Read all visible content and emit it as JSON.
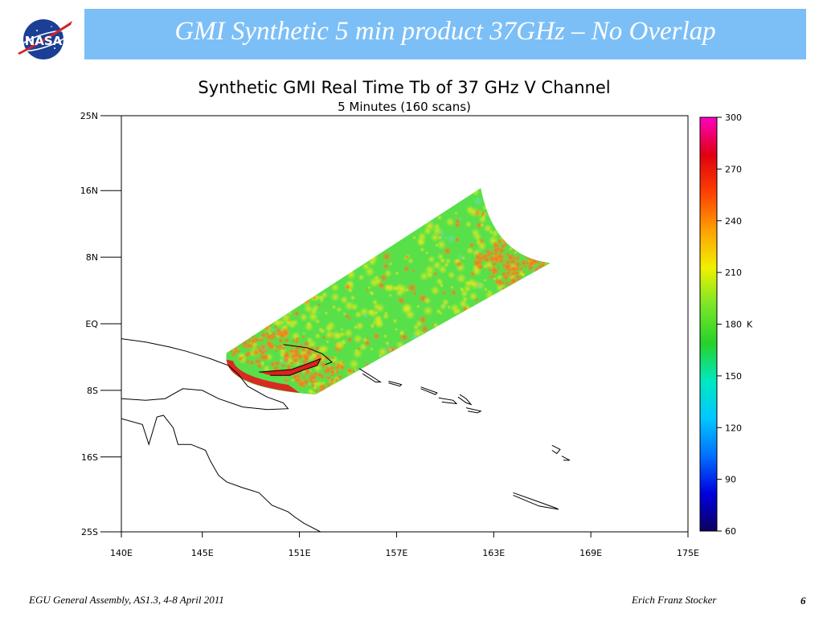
{
  "slide": {
    "title": "GMI Synthetic 5 min product 37GHz – No Overlap",
    "logo_text": "NASA",
    "footer_left": "EGU General Assembly, AS1.3, 4-8 April 2011",
    "footer_right": "Erich Franz Stocker",
    "page_number": "6",
    "title_bar_color": "#7cbff7"
  },
  "chart_data": {
    "type": "heatmap",
    "title": "Synthetic GMI Real Time Tb of 37 GHz V Channel",
    "subtitle": "5 Minutes (160 scans)",
    "x_axis": {
      "range": [
        140,
        175
      ],
      "ticks": [
        140,
        145,
        151,
        157,
        163,
        169,
        175
      ],
      "tick_labels": [
        "140E",
        "145E",
        "151E",
        "157E",
        "163E",
        "169E",
        "175E"
      ]
    },
    "y_axis": {
      "range": [
        -25,
        25
      ],
      "ticks": [
        25,
        16,
        8,
        0,
        -8,
        -16,
        -25
      ],
      "tick_labels": [
        "25N",
        "16N",
        "8N",
        "EQ",
        "8S",
        "16S",
        "25S"
      ]
    },
    "colorbar": {
      "range": [
        60,
        300
      ],
      "ticks": [
        300,
        270,
        240,
        210,
        180,
        150,
        120,
        90,
        60
      ],
      "tick_labels": [
        "300",
        "270",
        "240",
        "210",
        "180",
        "150",
        "120",
        "90",
        "60"
      ],
      "unit": "K",
      "unit_at": 180,
      "colors": [
        "#0d0060",
        "#0000e0",
        "#0070ff",
        "#00c8ff",
        "#00e8c0",
        "#28d228",
        "#78e628",
        "#f0f000",
        "#ffa000",
        "#ff4000",
        "#e00010",
        "#ff00c0"
      ]
    },
    "swath": {
      "corner_lonlat": [
        [
          146.5,
          -3.5
        ],
        [
          152.0,
          -8.5
        ],
        [
          166.5,
          7.3
        ],
        [
          162.2,
          16.3
        ]
      ],
      "background_color": "#58e04a",
      "hot_color": "#e02020",
      "warm_color": "#f08020"
    },
    "coastlines": [
      [
        [
          140,
          -1.8
        ],
        [
          141.5,
          -2.2
        ],
        [
          143,
          -2.8
        ],
        [
          144,
          -3.3
        ],
        [
          145.5,
          -4.2
        ],
        [
          146.6,
          -5
        ],
        [
          147.2,
          -6
        ],
        [
          147.8,
          -7.5
        ],
        [
          149,
          -8.8
        ],
        [
          150,
          -9.5
        ],
        [
          150.3,
          -10.2
        ],
        [
          149,
          -10.3
        ],
        [
          147.5,
          -10
        ],
        [
          146,
          -9
        ],
        [
          145,
          -8
        ],
        [
          143.8,
          -7.8
        ],
        [
          142.7,
          -9
        ],
        [
          141.5,
          -9.2
        ],
        [
          140,
          -9
        ]
      ],
      [
        [
          140,
          -11.4
        ],
        [
          141.3,
          -12.1
        ],
        [
          141.7,
          -14.5
        ],
        [
          142.2,
          -11.2
        ],
        [
          142.6,
          -11.0
        ],
        [
          143.2,
          -12.5
        ],
        [
          143.5,
          -14.5
        ],
        [
          144.3,
          -14.5
        ],
        [
          145.2,
          -15.2
        ],
        [
          145.5,
          -16.5
        ],
        [
          146,
          -18.2
        ],
        [
          146.5,
          -19
        ],
        [
          147.5,
          -19.7
        ],
        [
          148.5,
          -20.3
        ],
        [
          149.3,
          -21.8
        ],
        [
          150.3,
          -22.6
        ],
        [
          150.7,
          -23.2
        ],
        [
          151.3,
          -24
        ],
        [
          152.3,
          -25
        ]
      ],
      [
        [
          150.0,
          -2.5
        ],
        [
          151.5,
          -2.9
        ],
        [
          152.4,
          -3.6
        ],
        [
          153.0,
          -4.6
        ],
        [
          152.6,
          -4.9
        ]
      ],
      [
        [
          148.5,
          -5.8
        ],
        [
          150.5,
          -5.5
        ],
        [
          151.5,
          -4.8
        ],
        [
          152.3,
          -4.2
        ],
        [
          152.1,
          -5.0
        ],
        [
          151.2,
          -5.6
        ],
        [
          150.4,
          -6.2
        ],
        [
          149.2,
          -6.2
        ]
      ],
      [
        [
          154.7,
          -5.4
        ],
        [
          155.2,
          -6.0
        ],
        [
          156.0,
          -7.0
        ],
        [
          155.7,
          -7.0
        ],
        [
          154.9,
          -6.0
        ]
      ],
      [
        [
          156.5,
          -6.9
        ],
        [
          157.3,
          -7.3
        ],
        [
          157.2,
          -7.5
        ],
        [
          156.5,
          -7.1
        ]
      ],
      [
        [
          158.5,
          -7.6
        ],
        [
          159.5,
          -8.3
        ],
        [
          159.4,
          -8.5
        ],
        [
          158.5,
          -7.8
        ]
      ],
      [
        [
          159.6,
          -8.9
        ],
        [
          160.5,
          -9.2
        ],
        [
          160.7,
          -9.6
        ],
        [
          159.8,
          -9.4
        ]
      ],
      [
        [
          160.9,
          -8.5
        ],
        [
          161.3,
          -9.0
        ],
        [
          161.6,
          -9.7
        ],
        [
          161.3,
          -9.5
        ],
        [
          160.8,
          -8.8
        ]
      ],
      [
        [
          161.3,
          -10.1
        ],
        [
          162.2,
          -10.5
        ],
        [
          162.0,
          -10.7
        ],
        [
          161.4,
          -10.5
        ]
      ],
      [
        [
          166.6,
          -14.6
        ],
        [
          167.1,
          -15.1
        ],
        [
          166.9,
          -15.6
        ],
        [
          166.6,
          -15.2
        ]
      ],
      [
        [
          167.2,
          -15.9
        ],
        [
          167.7,
          -16.4
        ],
        [
          167.3,
          -16.4
        ]
      ],
      [
        [
          164.2,
          -20.3
        ],
        [
          165.5,
          -21.2
        ],
        [
          166.8,
          -22.1
        ],
        [
          167.0,
          -22.3
        ],
        [
          165.8,
          -21.9
        ],
        [
          164.2,
          -20.6
        ]
      ]
    ]
  }
}
